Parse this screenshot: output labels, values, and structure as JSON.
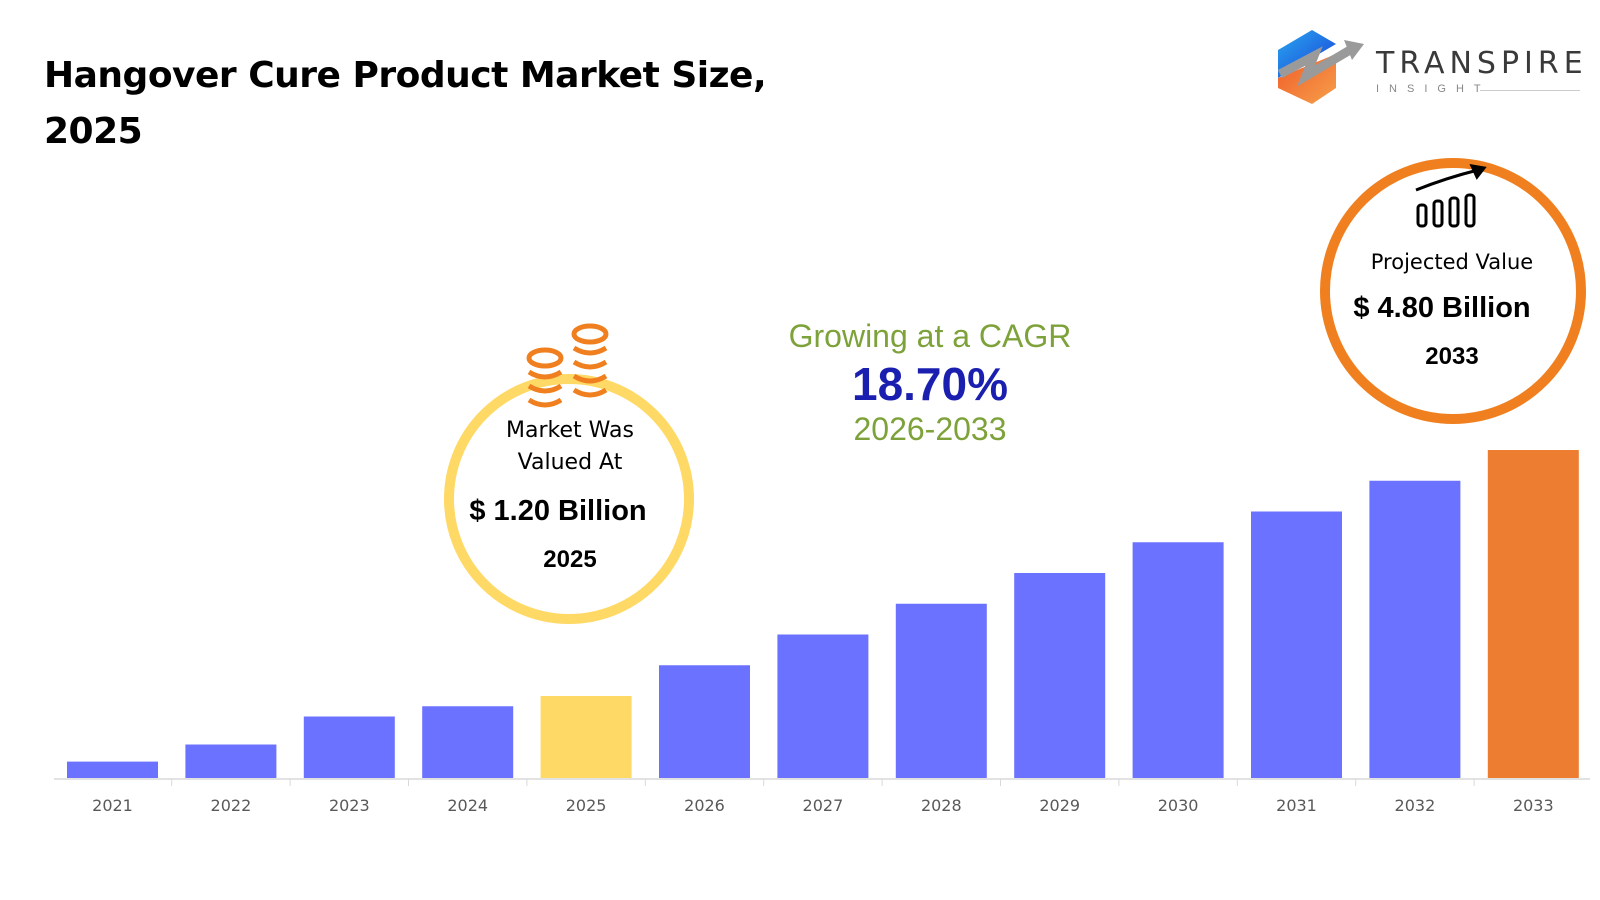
{
  "title": "Hangover Cure Product Market Size, 2025",
  "logo": {
    "name": "TRANSPIRE",
    "sub": "INSIGHT"
  },
  "cagr": {
    "label": "Growing at a CAGR",
    "value": "18.70%",
    "period": "2026-2033"
  },
  "callout_start": {
    "line1": "Market Was",
    "line2": "Valued At",
    "value": "$ 1.20 Billion",
    "year": "2025",
    "icon": "coin-stack-icon",
    "ring_color": "#FFD966"
  },
  "callout_end": {
    "label": "Projected Value",
    "value": "$ 4.80 Billion",
    "year": "2033",
    "icon": "bar-growth-icon",
    "ring_color": "#F0801F"
  },
  "chart_data": {
    "type": "bar",
    "title": "Hangover Cure Product Market Size, 2025",
    "xlabel": "",
    "ylabel": "",
    "categories": [
      "2021",
      "2022",
      "2023",
      "2024",
      "2025",
      "2026",
      "2027",
      "2028",
      "2029",
      "2030",
      "2031",
      "2032",
      "2033"
    ],
    "values": [
      0.24,
      0.49,
      0.9,
      1.05,
      1.2,
      1.65,
      2.1,
      2.55,
      3.0,
      3.45,
      3.9,
      4.35,
      4.8
    ],
    "units": "USD Billion",
    "ylim": [
      0,
      4.8
    ],
    "grid": false,
    "colors": {
      "default": "#6B72FF",
      "highlight_2025": "#FFD966",
      "highlight_2033": "#ED7D31"
    }
  }
}
